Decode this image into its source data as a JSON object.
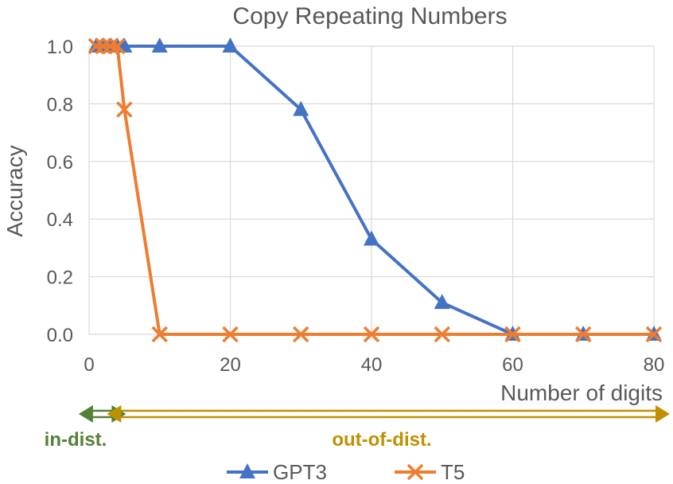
{
  "chart_data": {
    "type": "line",
    "title": "Copy Repeating Numbers",
    "xlabel": "Number of digits",
    "ylabel": "Accuracy",
    "xlim": [
      0,
      80
    ],
    "ylim": [
      0,
      1
    ],
    "xticks": [
      0,
      20,
      40,
      60,
      80
    ],
    "yticks": [
      0,
      0.2,
      0.4,
      0.6,
      0.8,
      1.0
    ],
    "xtick_labels": [
      "0",
      "20",
      "40",
      "60",
      "80"
    ],
    "ytick_labels": [
      "0.0",
      "0.2",
      "0.4",
      "0.6",
      "0.8",
      "1.0"
    ],
    "grid": true,
    "legend_position": "bottom",
    "series": [
      {
        "name": "GPT3",
        "color": "#4472C4",
        "marker": "triangle",
        "x": [
          1,
          2,
          3,
          4,
          5,
          10,
          20,
          30,
          40,
          50,
          60,
          70,
          80
        ],
        "y": [
          1.0,
          1.0,
          1.0,
          1.0,
          1.0,
          1.0,
          1.0,
          0.78,
          0.33,
          0.11,
          0.0,
          0.0,
          0.0
        ]
      },
      {
        "name": "T5",
        "color": "#ED7D31",
        "marker": "x",
        "x": [
          1,
          2,
          3,
          4,
          5,
          10,
          20,
          30,
          40,
          50,
          60,
          70,
          80
        ],
        "y": [
          1.0,
          1.0,
          1.0,
          1.0,
          0.78,
          0.0,
          0.0,
          0.0,
          0.0,
          0.0,
          0.0,
          0.0,
          0.0
        ]
      }
    ],
    "ranges": [
      {
        "label": "in-dist.",
        "color": "#538135",
        "from": 1,
        "to": 5
      },
      {
        "label": "out-of-dist.",
        "color": "#BF9000",
        "from": 5,
        "to": 80
      }
    ]
  }
}
